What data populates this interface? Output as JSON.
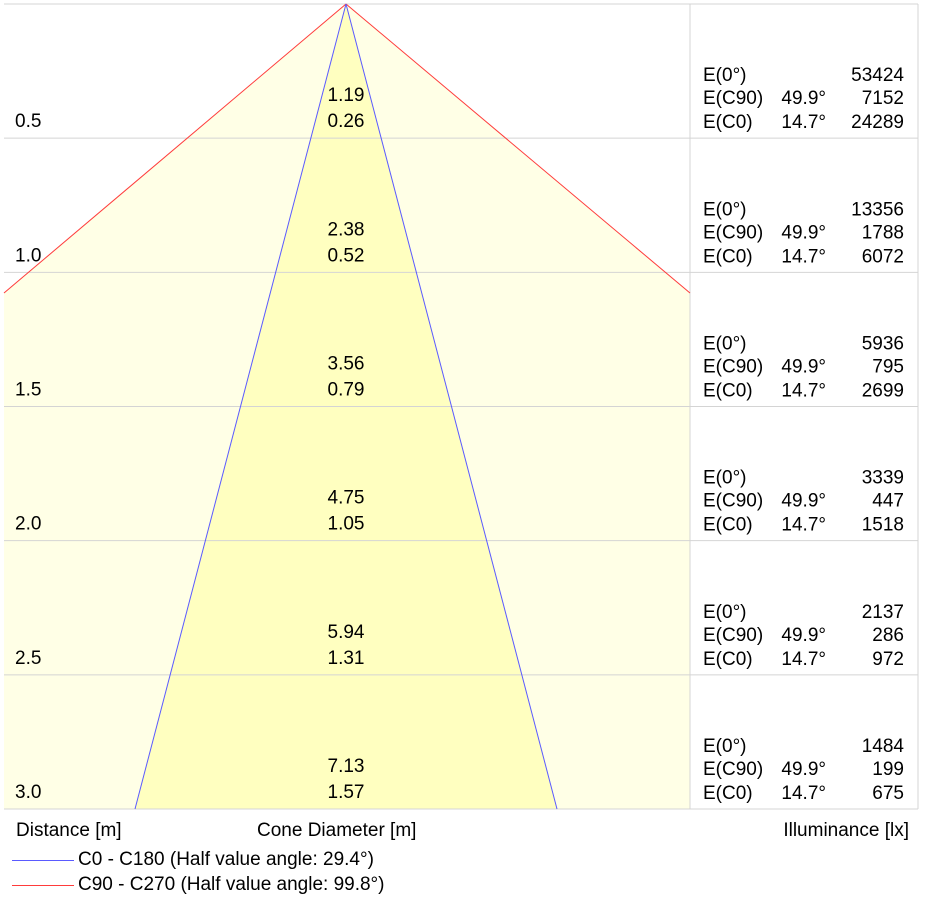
{
  "chart_data": {
    "type": "cone-diagram",
    "distance_label": "Distance [m]",
    "diameter_label": "Cone Diameter [m]",
    "illuminance_label": "Illuminance [lx]",
    "rows": [
      {
        "distance": "0.5",
        "c90_diameter": "1.19",
        "c0_diameter": "0.26",
        "e0_label": "E(0°)",
        "e0": "53424",
        "ec90_label": "E(C90)",
        "ec90_angle": "49.9°",
        "ec90": "7152",
        "ec0_label": "E(C0)",
        "ec0_angle": "14.7°",
        "ec0": "24289"
      },
      {
        "distance": "1.0",
        "c90_diameter": "2.38",
        "c0_diameter": "0.52",
        "e0_label": "E(0°)",
        "e0": "13356",
        "ec90_label": "E(C90)",
        "ec90_angle": "49.9°",
        "ec90": "1788",
        "ec0_label": "E(C0)",
        "ec0_angle": "14.7°",
        "ec0": "6072"
      },
      {
        "distance": "1.5",
        "c90_diameter": "3.56",
        "c0_diameter": "0.79",
        "e0_label": "E(0°)",
        "e0": "5936",
        "ec90_label": "E(C90)",
        "ec90_angle": "49.9°",
        "ec90": "795",
        "ec0_label": "E(C0)",
        "ec0_angle": "14.7°",
        "ec0": "2699"
      },
      {
        "distance": "2.0",
        "c90_diameter": "4.75",
        "c0_diameter": "1.05",
        "e0_label": "E(0°)",
        "e0": "3339",
        "ec90_label": "E(C90)",
        "ec90_angle": "49.9°",
        "ec90": "447",
        "ec0_label": "E(C0)",
        "ec0_angle": "14.7°",
        "ec0": "1518"
      },
      {
        "distance": "2.5",
        "c90_diameter": "5.94",
        "c0_diameter": "1.31",
        "e0_label": "E(0°)",
        "e0": "2137",
        "ec90_label": "E(C90)",
        "ec90_angle": "49.9°",
        "ec90": "286",
        "ec0_label": "E(C0)",
        "ec0_angle": "14.7°",
        "ec0": "972"
      },
      {
        "distance": "3.0",
        "c90_diameter": "7.13",
        "c0_diameter": "1.57",
        "e0_label": "E(0°)",
        "e0": "1484",
        "ec90_label": "E(C90)",
        "ec90_angle": "49.9°",
        "ec90": "199",
        "ec0_label": "E(C0)",
        "ec0_angle": "14.7°",
        "ec0": "675"
      }
    ],
    "legend": [
      {
        "label": "C0 - C180 (Half value angle: 29.4°)",
        "color": "#5a5aff"
      },
      {
        "label": "C90 - C270 (Half value angle: 99.8°)",
        "color": "#ff3b3b"
      }
    ],
    "colors": {
      "outer_fill": "#ffffe6",
      "inner_fill": "#ffffc0",
      "grid": "#d4d4d4",
      "c0_line": "#5a5aff",
      "c90_line": "#ff3b3b"
    }
  }
}
